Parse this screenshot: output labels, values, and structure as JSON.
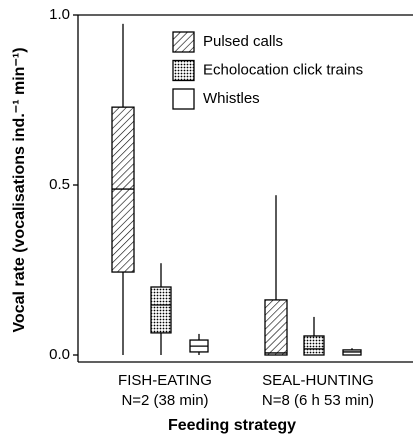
{
  "chart_data": {
    "type": "box",
    "y_label": "Vocal rate (vocalisations ind.⁻¹ min⁻¹)",
    "x_label": "Feeding strategy",
    "categories": [
      "FISH-EATING",
      "SEAL-HUNTING"
    ],
    "sample_sizes": [
      "N=2 (38 min)",
      "N=8 (6 h 53 min)"
    ],
    "ylim": [
      0,
      1.0
    ],
    "yticks": [
      {
        "value": 0,
        "label": "0.0"
      },
      0.5,
      {
        "value": 1.0,
        "label": "1.0"
      }
    ],
    "legend": "top-right",
    "series": [
      {
        "name": "Pulsed calls",
        "pattern": "hatch",
        "color": "#000000",
        "boxes": [
          {
            "min": 0,
            "q1": 0.244,
            "median": 0.488,
            "q3": 0.729,
            "max": 0.974
          },
          {
            "min": 0,
            "q1": 0,
            "median": 0.006,
            "q3": 0.162,
            "max": 0.47
          }
        ]
      },
      {
        "name": "Echolocation click trains",
        "pattern": "dots",
        "color": "#000000",
        "boxes": [
          {
            "min": 0,
            "q1": 0.065,
            "median": 0.147,
            "q3": 0.2,
            "max": 0.27
          },
          {
            "min": 0,
            "q1": 0,
            "median": 0.018,
            "q3": 0.056,
            "max": 0.112
          }
        ]
      },
      {
        "name": "Whistles",
        "pattern": "none",
        "color": "#000000",
        "boxes": [
          {
            "min": 0,
            "q1": 0.009,
            "median": 0.026,
            "q3": 0.044,
            "max": 0.062
          },
          {
            "min": 0,
            "q1": 0,
            "median": 0.009,
            "q3": 0.015,
            "max": 0.02
          }
        ]
      }
    ]
  }
}
